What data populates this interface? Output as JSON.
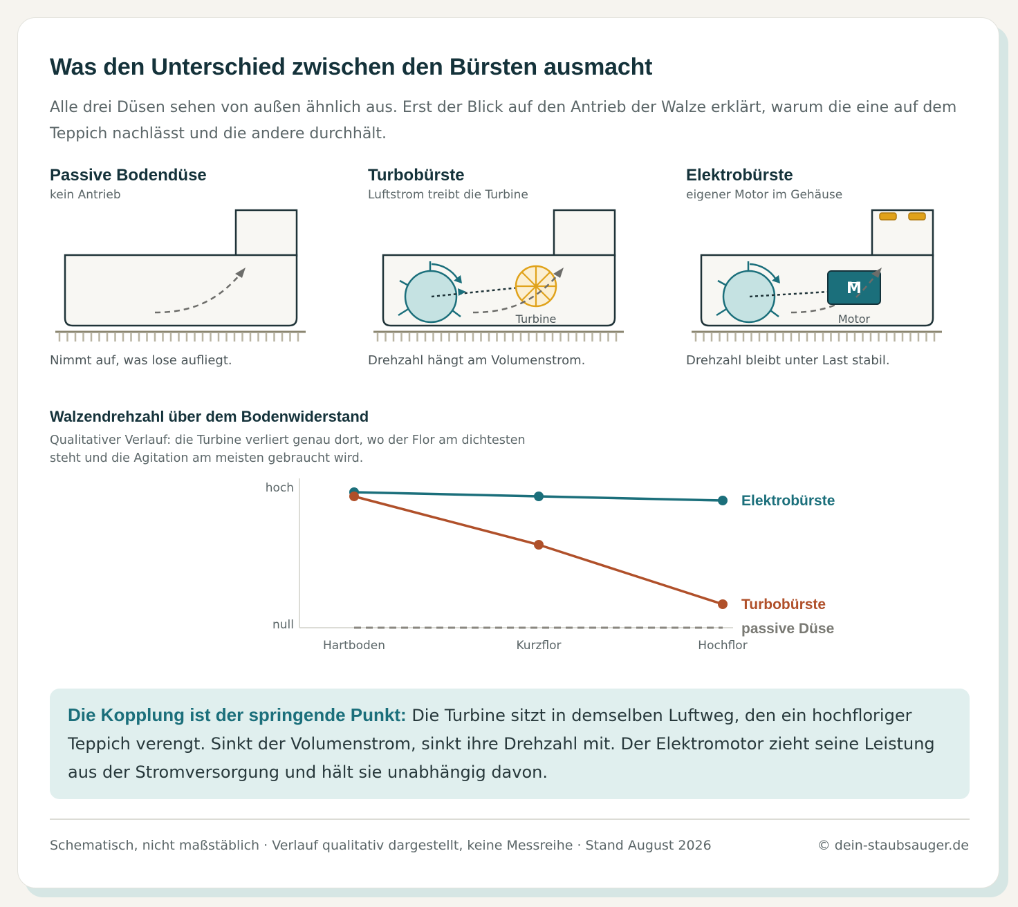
{
  "header": {
    "title": "Was den Unterschied zwischen den Bürsten ausmacht",
    "lead": "Alle drei Düsen sehen von außen ähnlich aus. Erst der Blick auf den Antrieb der Walze erklärt, warum die eine auf dem Teppich nachlässt und die andere durchhält."
  },
  "panels": [
    {
      "title": "Passive Bodendüse",
      "subtitle": "kein Antrieb",
      "caption": "Nimmt auf, was lose aufliegt."
    },
    {
      "title": "Turbobürste",
      "subtitle": "Luftstrom treibt die Turbine",
      "part_label": "Turbine",
      "caption": "Drehzahl hängt am Volumenstrom."
    },
    {
      "title": "Elektrobürste",
      "subtitle": "eigener Motor im Gehäuse",
      "part_label": "Motor",
      "motor_symbol": "M",
      "caption": "Drehzahl bleibt unter Last stabil."
    }
  ],
  "chart_section": {
    "title": "Walzendrehzahl über dem Bodenwiderstand",
    "subtitle": "Qualitativer Verlauf: die Turbine verliert genau dort, wo der Flor am dichtesten steht und die Agitation am meisten gebraucht wird."
  },
  "chart_data": {
    "type": "line",
    "categories": [
      "Hartboden",
      "Kurzflor",
      "Hochflor"
    ],
    "y_tick_labels": {
      "top": "hoch",
      "bottom": "null"
    },
    "ylim": [
      0,
      1
    ],
    "grid": false,
    "legend": "direct labels at line ends (right)",
    "series": [
      {
        "name": "Elektrobürste",
        "values": [
          0.98,
          0.95,
          0.92
        ],
        "color": "#1b6f7b",
        "style": "solid",
        "markers": true
      },
      {
        "name": "Turbobürste",
        "values": [
          0.95,
          0.6,
          0.17
        ],
        "color": "#b0502a",
        "style": "solid",
        "markers": true
      },
      {
        "name": "passive Düse",
        "values": [
          0,
          0,
          0
        ],
        "color": "#8a8780",
        "style": "dashed",
        "markers": false
      }
    ]
  },
  "callout": {
    "strong": "Die Kopplung ist der springende Punkt:",
    "text": "Die Turbine sitzt in demselben Luftweg, den ein hochfloriger Teppich verengt. Sinkt der Volumenstrom, sinkt ihre Drehzahl mit. Der Elektromotor zieht seine Leistung aus der Stromversorgung und hält sie unabhängig davon."
  },
  "footer": {
    "note": "Schematisch, nicht maßstäblich · Verlauf qualitativ dargestellt, keine Messreihe · Stand August 2026",
    "copyright": "© dein-staubsauger.de"
  },
  "colors": {
    "teal": "#1b6f7b",
    "rust": "#b0502a",
    "amber": "#e0a21a",
    "ink": "#14323a"
  }
}
